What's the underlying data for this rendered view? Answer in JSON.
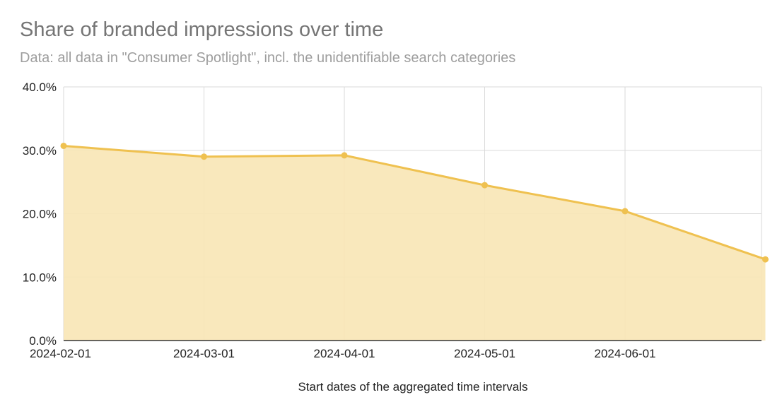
{
  "chart_data": {
    "type": "area",
    "title": "Share of branded impressions over time",
    "subtitle": "Data: all data in \"Consumer Spotlight\", incl. the unidentifiable search categories",
    "xlabel": "Start dates of the aggregated time intervals",
    "ylabel": "",
    "ylim": [
      0,
      40
    ],
    "yticks": [
      0,
      10,
      20,
      30,
      40
    ],
    "ytick_labels": [
      "0.0%",
      "10.0%",
      "20.0%",
      "30.0%",
      "40.0%"
    ],
    "x": [
      "2024-02-01",
      "2024-03-01",
      "2024-04-01",
      "2024-05-01",
      "2024-06-01",
      "2024-07-01"
    ],
    "xtick_labels": [
      "2024-02-01",
      "2024-03-01",
      "2024-04-01",
      "2024-05-01",
      "2024-06-01"
    ],
    "series": [
      {
        "values": [
          30.7,
          29.0,
          29.2,
          24.5,
          20.4,
          12.8
        ]
      }
    ],
    "grid": true,
    "legend": "none",
    "colors": {
      "line": "#efc150",
      "fill": "#f8e6b5",
      "grid": "#d9d9d9",
      "axis": "#333333"
    }
  }
}
